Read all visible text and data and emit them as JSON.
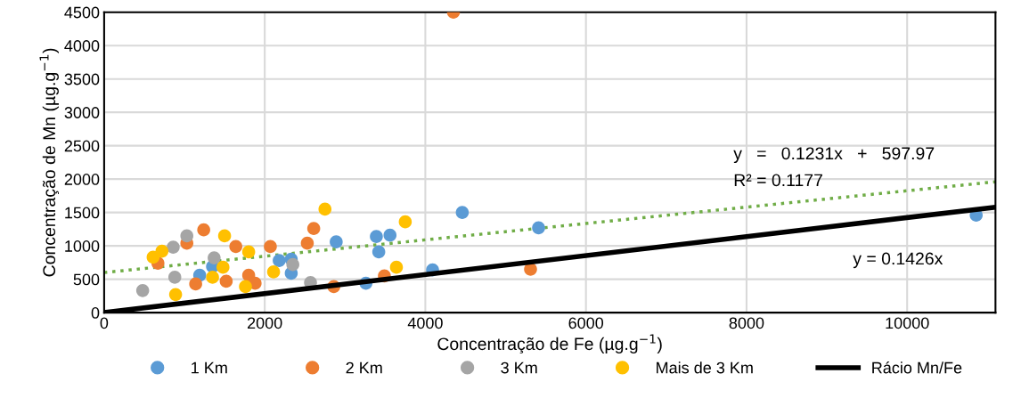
{
  "chart_data": {
    "type": "scatter",
    "xlabel": "Concentração de Fe (µg.g$^{−1}$)",
    "ylabel": "Concentração de Mn (µg.g$^{−1}$)",
    "xlim": [
      0,
      11100
    ],
    "xticks": [
      0,
      2000,
      4000,
      6000,
      8000,
      10000
    ],
    "ylim": [
      0,
      4500
    ],
    "yticks": [
      0,
      500,
      1000,
      1500,
      2000,
      2500,
      3000,
      3500,
      4000,
      4500
    ],
    "grid": true,
    "legend": "bottom",
    "marker": "circle",
    "series": [
      {
        "name": "1 Km",
        "color": "#5b9bd5",
        "x": [
          1190,
          1350,
          2180,
          2330,
          2330,
          2890,
          3390,
          3560,
          3420,
          3260,
          4090,
          4460,
          5410,
          10860
        ],
        "values": [
          560,
          690,
          780,
          800,
          590,
          1060,
          1140,
          1160,
          910,
          440,
          640,
          1500,
          1270,
          1460
        ]
      },
      {
        "name": "2 Km",
        "color": "#ed7d31",
        "x": [
          670,
          1030,
          1240,
          1140,
          1640,
          1520,
          1800,
          1880,
          2070,
          2530,
          2610,
          2860,
          4350,
          3490,
          5310
        ],
        "values": [
          740,
          1040,
          1240,
          430,
          990,
          470,
          560,
          440,
          990,
          1040,
          1260,
          390,
          4500,
          550,
          650
        ]
      },
      {
        "name": "3 Km",
        "color": "#a5a5a5",
        "x": [
          480,
          880,
          860,
          1030,
          1370,
          2350,
          2570
        ],
        "values": [
          330,
          530,
          980,
          1150,
          820,
          720,
          450
        ]
      },
      {
        "name": "Mais de 3 Km",
        "color": "#ffc000",
        "x": [
          610,
          720,
          890,
          1350,
          1480,
          1500,
          1800,
          1760,
          2110,
          2750,
          3750,
          3640
        ],
        "values": [
          830,
          920,
          270,
          530,
          680,
          1150,
          910,
          390,
          610,
          1550,
          1360,
          680
        ]
      },
      {
        "type": "line",
        "color": "#70ad47",
        "line_style": "dotted",
        "marker": "none",
        "x": [
          0,
          11100
        ],
        "values": [
          600,
          1960
        ]
      },
      {
        "type": "line",
        "name": "Rácio Mn/Fe",
        "color": "#000000",
        "line_style": "solid",
        "marker": "none",
        "x": [
          0,
          11100
        ],
        "values": [
          0,
          1580
        ]
      }
    ],
    "annotations": [
      "y   =   0.1231x   +   597.97",
      "R² = 0.1177",
      "y = 0.1426x"
    ]
  }
}
